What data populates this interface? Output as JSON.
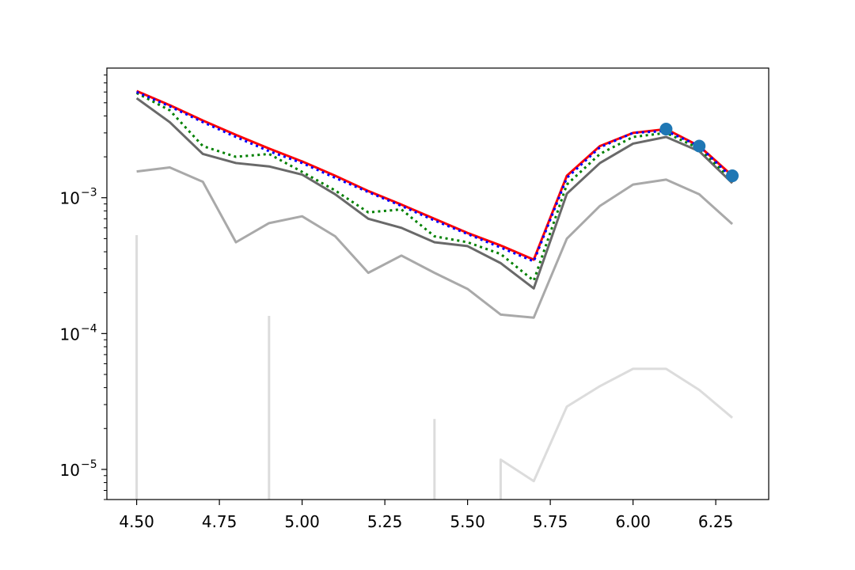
{
  "chart_data": {
    "type": "line",
    "title": "",
    "xlabel": "",
    "ylabel": "",
    "xlim": [
      4.41,
      6.41
    ],
    "ylim": [
      6e-06,
      0.009
    ],
    "yscale": "log",
    "grid": false,
    "x_ticks": [
      {
        "value": 4.5,
        "label": "4.50"
      },
      {
        "value": 4.75,
        "label": "4.75"
      },
      {
        "value": 5.0,
        "label": "5.00"
      },
      {
        "value": 5.25,
        "label": "5.25"
      },
      {
        "value": 5.5,
        "label": "5.50"
      },
      {
        "value": 5.75,
        "label": "5.75"
      },
      {
        "value": 6.0,
        "label": "6.00"
      },
      {
        "value": 6.25,
        "label": "6.25"
      }
    ],
    "y_ticks": [
      {
        "value": 1e-05,
        "base": "10",
        "exponent": "−5"
      },
      {
        "value": 0.0001,
        "base": "10",
        "exponent": "−4"
      },
      {
        "value": 0.001,
        "base": "10",
        "exponent": "−3"
      }
    ],
    "series": [
      {
        "color": "#dcdcdc",
        "style": "solid",
        "segments": [
          [
            [
              4.5,
              0.00053
            ],
            [
              4.5,
              6e-06
            ]
          ],
          [
            [
              4.9,
              0.000135
            ],
            [
              4.9,
              6e-06
            ]
          ],
          [
            [
              5.4,
              2.35e-05
            ],
            [
              5.4,
              6e-06
            ]
          ],
          [
            [
              5.6,
              6e-06
            ],
            [
              5.6,
              1.18e-05
            ],
            [
              5.7,
              8.2e-06
            ],
            [
              5.8,
              2.9e-05
            ],
            [
              5.9,
              4.1e-05
            ],
            [
              6.0,
              5.5e-05
            ],
            [
              6.1,
              5.5e-05
            ],
            [
              6.2,
              3.85e-05
            ],
            [
              6.3,
              2.4e-05
            ]
          ]
        ]
      },
      {
        "color": "#a9a9a9",
        "style": "solid",
        "segments": [
          [
            [
              4.5,
              0.00156
            ],
            [
              4.6,
              0.00167
            ],
            [
              4.7,
              0.00131
            ],
            [
              4.8,
              0.00047
            ],
            [
              4.9,
              0.00065
            ],
            [
              5.0,
              0.00073
            ],
            [
              5.1,
              0.00052
            ],
            [
              5.2,
              0.00028
            ],
            [
              5.3,
              0.000375
            ],
            [
              5.4,
              0.00028
            ],
            [
              5.5,
              0.000213
            ],
            [
              5.6,
              0.000138
            ],
            [
              5.7,
              0.000131
            ],
            [
              5.8,
              0.0005
            ],
            [
              5.9,
              0.00087
            ],
            [
              6.0,
              0.00125
            ],
            [
              6.1,
              0.00136
            ],
            [
              6.2,
              0.00106
            ],
            [
              6.3,
              0.00064
            ]
          ]
        ]
      },
      {
        "color": "#696969",
        "style": "solid",
        "segments": [
          [
            [
              4.5,
              0.0054
            ],
            [
              4.6,
              0.0036
            ],
            [
              4.7,
              0.0021
            ],
            [
              4.8,
              0.0018
            ],
            [
              4.9,
              0.0017
            ],
            [
              5.0,
              0.00148
            ],
            [
              5.1,
              0.00106
            ],
            [
              5.2,
              0.0007
            ],
            [
              5.3,
              0.0006
            ],
            [
              5.4,
              0.00047
            ],
            [
              5.5,
              0.00044
            ],
            [
              5.6,
              0.00033
            ],
            [
              5.7,
              0.000215
            ],
            [
              5.8,
              0.00107
            ],
            [
              5.9,
              0.0018
            ],
            [
              6.0,
              0.0025
            ],
            [
              6.1,
              0.0028
            ],
            [
              6.2,
              0.0022
            ],
            [
              6.3,
              0.00128
            ]
          ]
        ]
      },
      {
        "color": "#008000",
        "style": "dotted",
        "segments": [
          [
            [
              4.5,
              0.0059
            ],
            [
              4.6,
              0.0044
            ],
            [
              4.7,
              0.0024
            ],
            [
              4.8,
              0.002
            ],
            [
              4.9,
              0.0021
            ],
            [
              5.0,
              0.00155
            ],
            [
              5.1,
              0.00113
            ],
            [
              5.2,
              0.00078
            ],
            [
              5.3,
              0.00082
            ],
            [
              5.4,
              0.00052
            ],
            [
              5.5,
              0.00047
            ],
            [
              5.6,
              0.000385
            ],
            [
              5.7,
              0.000245
            ],
            [
              5.8,
              0.00125
            ],
            [
              5.9,
              0.0021
            ],
            [
              6.0,
              0.0028
            ],
            [
              6.1,
              0.003
            ],
            [
              6.2,
              0.0023
            ],
            [
              6.3,
              0.00135
            ]
          ]
        ]
      },
      {
        "color": "#ff0000",
        "style": "solid",
        "segments": [
          [
            [
              4.5,
              0.0061
            ],
            [
              4.6,
              0.0048
            ],
            [
              4.7,
              0.0037
            ],
            [
              4.8,
              0.0029
            ],
            [
              4.9,
              0.0023
            ],
            [
              5.0,
              0.00185
            ],
            [
              5.1,
              0.00145
            ],
            [
              5.2,
              0.00112
            ],
            [
              5.3,
              0.00089
            ],
            [
              5.4,
              0.0007
            ],
            [
              5.5,
              0.00055
            ],
            [
              5.6,
              0.000445
            ],
            [
              5.7,
              0.00035
            ],
            [
              5.8,
              0.00145
            ],
            [
              5.9,
              0.0024
            ],
            [
              6.0,
              0.003
            ],
            [
              6.1,
              0.0032
            ],
            [
              6.2,
              0.0024
            ],
            [
              6.3,
              0.00145
            ]
          ]
        ]
      },
      {
        "color": "#0000ff",
        "style": "dotted",
        "segments": [
          [
            [
              4.5,
              0.006
            ],
            [
              4.6,
              0.0047
            ],
            [
              4.7,
              0.0036
            ],
            [
              4.8,
              0.0028
            ],
            [
              4.9,
              0.0022
            ],
            [
              5.0,
              0.0018
            ],
            [
              5.1,
              0.0014
            ],
            [
              5.2,
              0.0011
            ],
            [
              5.3,
              0.00087
            ],
            [
              5.4,
              0.00068
            ],
            [
              5.5,
              0.00054
            ],
            [
              5.6,
              0.00043
            ],
            [
              5.7,
              0.00034
            ],
            [
              5.8,
              0.0014
            ],
            [
              5.9,
              0.00235
            ],
            [
              6.0,
              0.003
            ],
            [
              6.1,
              0.0031
            ],
            [
              6.2,
              0.0024
            ],
            [
              6.3,
              0.0014
            ]
          ]
        ]
      }
    ],
    "markers": {
      "color": "#1f77b4",
      "points": [
        [
          6.1,
          0.0032
        ],
        [
          6.2,
          0.0024
        ],
        [
          6.3,
          0.00145
        ]
      ]
    }
  }
}
